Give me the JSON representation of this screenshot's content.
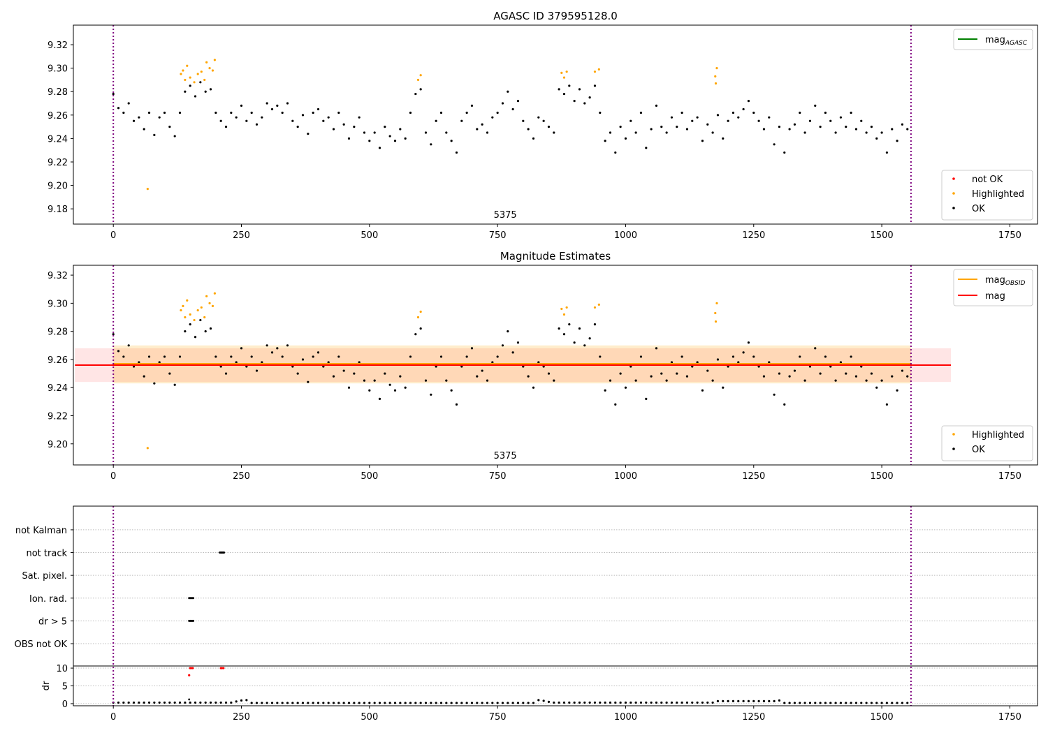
{
  "colors": {
    "ok": "#000000",
    "highlighted": "#ffa500",
    "not_ok": "#ff0000",
    "mag_agasc": "#008000",
    "mag_obsid": "#ffa500",
    "mag": "#ff0000",
    "vline": "#800080"
  },
  "chart_data": [
    {
      "type": "scatter",
      "title": "AGASC ID 379595128.0",
      "xlim": [
        -78,
        1804
      ],
      "ylim": [
        9.167,
        9.3367
      ],
      "xticks": [
        0,
        250,
        500,
        750,
        1000,
        1250,
        1500,
        1750
      ],
      "yticks": [
        9.18,
        9.2,
        9.22,
        9.24,
        9.26,
        9.28,
        9.3,
        9.32
      ],
      "vlines": [
        0,
        1557
      ],
      "annotation": {
        "text": "5375",
        "x": 765
      },
      "legend_lines": [
        {
          "label": "mag",
          "sub": "AGASC",
          "color_key": "mag_agasc"
        }
      ],
      "legend_points": [
        {
          "label": "not OK",
          "color_key": "not_ok"
        },
        {
          "label": "Highlighted",
          "color_key": "highlighted"
        },
        {
          "label": "OK",
          "color_key": "ok"
        }
      ],
      "legend_lines_loc": "upper right",
      "legend_points_loc": "lower right"
    },
    {
      "type": "scatter",
      "title": "Magnitude Estimates",
      "xlim": [
        -78,
        1804
      ],
      "ylim": [
        9.185,
        9.327
      ],
      "xticks": [
        0,
        250,
        500,
        750,
        1000,
        1250,
        1500,
        1750
      ],
      "yticks": [
        9.2,
        9.22,
        9.24,
        9.26,
        9.28,
        9.3,
        9.32
      ],
      "vlines": [
        0,
        1557
      ],
      "annotation": {
        "text": "5375",
        "x": 765
      },
      "mag": {
        "value": 9.256,
        "low": 9.244,
        "high": 9.268,
        "x_range": [
          -75,
          1635
        ]
      },
      "mag_obsid": {
        "value": 9.257,
        "low": 9.243,
        "high": 9.27,
        "x_range": [
          0,
          1557
        ]
      },
      "legend_lines": [
        {
          "label": "mag",
          "sub": "OBSID",
          "color_key": "mag_obsid"
        },
        {
          "label": "mag",
          "sub": "",
          "color_key": "mag"
        }
      ],
      "legend_points": [
        {
          "label": "Highlighted",
          "color_key": "highlighted"
        },
        {
          "label": "OK",
          "color_key": "ok"
        }
      ],
      "legend_lines_loc": "upper right",
      "legend_points_loc": "lower right"
    },
    {
      "type": "scatter",
      "title": "",
      "flag_categories": [
        "OBS not OK",
        "dr > 5",
        "Ion. rad.",
        "Sat. pixel.",
        "not track",
        "not Kalman"
      ],
      "flag_ylim": [
        -0.98,
        6.04
      ],
      "flags": {
        "not track": [
          208,
          210,
          212,
          214,
          216
        ],
        "Ion. rad.": [
          148,
          150,
          152,
          154,
          156
        ],
        "dr > 5": [
          148,
          150,
          152,
          154,
          156
        ]
      },
      "dr_ylabel": "dr",
      "dr_ylim": [
        -0.6,
        10.6
      ],
      "dr_yticks": [
        0,
        5,
        10
      ],
      "xlim": [
        -78,
        1804
      ],
      "xticks": [
        0,
        250,
        500,
        750,
        1000,
        1250,
        1500,
        1750
      ],
      "vlines": [
        0,
        1557
      ],
      "dr_x_start": 0,
      "dr_x_step": 10,
      "dr": [
        0.3,
        0.3,
        0.3,
        0.3,
        0.3,
        0.3,
        0.3,
        0.3,
        0.3,
        0.3,
        0.3,
        0.3,
        0.3,
        0.3,
        0.3,
        0.3,
        0.3,
        0.3,
        0.3,
        0.3,
        0.3,
        0.3,
        0.3,
        0.3,
        0.6,
        0.9,
        1.0,
        0.2,
        0.2,
        0.2,
        0.2,
        0.2,
        0.2,
        0.2,
        0.2,
        0.2,
        0.2,
        0.2,
        0.2,
        0.2,
        0.2,
        0.2,
        0.2,
        0.2,
        0.2,
        0.2,
        0.2,
        0.2,
        0.2,
        0.2,
        0.2,
        0.2,
        0.2,
        0.2,
        0.2,
        0.2,
        0.2,
        0.2,
        0.2,
        0.2,
        0.2,
        0.2,
        0.2,
        0.2,
        0.2,
        0.2,
        0.2,
        0.2,
        0.2,
        0.2,
        0.2,
        0.2,
        0.2,
        0.2,
        0.2,
        0.2,
        0.2,
        0.2,
        0.2,
        0.2,
        0.2,
        0.2,
        0.2,
        1.0,
        0.8,
        0.5,
        0.3,
        0.3,
        0.3,
        0.3,
        0.3,
        0.3,
        0.3,
        0.3,
        0.3,
        0.3,
        0.3,
        0.3,
        0.3,
        0.3,
        0.3,
        0.3,
        0.3,
        0.3,
        0.3,
        0.3,
        0.3,
        0.3,
        0.3,
        0.3,
        0.3,
        0.3,
        0.3,
        0.3,
        0.3,
        0.3,
        0.3,
        0.3,
        0.7,
        0.7,
        0.7,
        0.7,
        0.7,
        0.7,
        0.7,
        0.7,
        0.7,
        0.7,
        0.7,
        0.7,
        0.9,
        0.2,
        0.2,
        0.2,
        0.2,
        0.2,
        0.2,
        0.2,
        0.2,
        0.2,
        0.2,
        0.2,
        0.2,
        0.2,
        0.2,
        0.2,
        0.2,
        0.2,
        0.2,
        0.2,
        0.2,
        0.2,
        0.2,
        0.2,
        0.2,
        0.2
      ],
      "dr_extra_ok": [
        [
          148,
          1.2
        ]
      ],
      "dr_not_ok": [
        [
          148,
          8
        ],
        [
          150,
          10
        ],
        [
          152,
          10
        ],
        [
          155,
          10
        ],
        [
          210,
          10
        ],
        [
          212,
          10
        ],
        [
          215,
          10
        ]
      ]
    }
  ],
  "series": {
    "ok_x_start": 0,
    "ok_x_step": 10,
    "ok_mag": [
      9.278,
      9.266,
      9.262,
      9.27,
      9.255,
      9.258,
      9.248,
      9.262,
      9.243,
      9.258,
      9.262,
      9.25,
      9.242,
      9.262,
      9.28,
      9.285,
      9.276,
      9.288,
      9.28,
      9.282,
      9.262,
      9.255,
      9.25,
      9.262,
      9.258,
      9.268,
      9.255,
      9.262,
      9.252,
      9.258,
      9.27,
      9.265,
      9.268,
      9.262,
      9.27,
      9.255,
      9.25,
      9.26,
      9.244,
      9.262,
      9.265,
      9.255,
      9.258,
      9.248,
      9.262,
      9.252,
      9.24,
      9.25,
      9.258,
      9.245,
      9.238,
      9.245,
      9.232,
      9.25,
      9.242,
      9.238,
      9.248,
      9.24,
      9.262,
      9.278,
      9.282,
      9.245,
      9.235,
      9.255,
      9.262,
      9.245,
      9.238,
      9.228,
      9.255,
      9.262,
      9.268,
      9.248,
      9.252,
      9.245,
      9.258,
      9.262,
      9.27,
      9.28,
      9.265,
      9.272,
      9.255,
      9.248,
      9.24,
      9.258,
      9.255,
      9.25,
      9.245,
      9.282,
      9.278,
      9.285,
      9.272,
      9.282,
      9.27,
      9.275,
      9.285,
      9.262,
      9.238,
      9.245,
      9.228,
      9.25,
      9.24,
      9.255,
      9.245,
      9.262,
      9.232,
      9.248,
      9.268,
      9.25,
      9.245,
      9.258,
      9.25,
      9.262,
      9.248,
      9.255,
      9.258,
      9.238,
      9.252,
      9.245,
      9.26,
      9.24,
      9.255,
      9.262,
      9.258,
      9.265,
      9.272,
      9.262,
      9.255,
      9.248,
      9.258,
      9.235,
      9.25,
      9.228,
      9.248,
      9.252,
      9.262,
      9.245,
      9.255,
      9.268,
      9.25,
      9.262,
      9.255,
      9.245,
      9.258,
      9.25,
      9.262,
      9.248,
      9.255,
      9.245,
      9.25,
      9.24,
      9.245,
      9.228,
      9.248,
      9.238,
      9.252,
      9.248
    ],
    "highlighted": [
      [
        132,
        9.295
      ],
      [
        136,
        9.298
      ],
      [
        140,
        9.29
      ],
      [
        144,
        9.302
      ],
      [
        150,
        9.292
      ],
      [
        158,
        9.288
      ],
      [
        165,
        9.295
      ],
      [
        172,
        9.297
      ],
      [
        178,
        9.29
      ],
      [
        182,
        9.305
      ],
      [
        188,
        9.3
      ],
      [
        194,
        9.298
      ],
      [
        198,
        9.307
      ],
      [
        67,
        9.197
      ],
      [
        595,
        9.29
      ],
      [
        600,
        9.294
      ],
      [
        875,
        9.296
      ],
      [
        880,
        9.292
      ],
      [
        885,
        9.297
      ],
      [
        940,
        9.297
      ],
      [
        948,
        9.299
      ],
      [
        1175,
        9.293
      ],
      [
        1178,
        9.3
      ],
      [
        1176,
        9.287
      ]
    ]
  }
}
